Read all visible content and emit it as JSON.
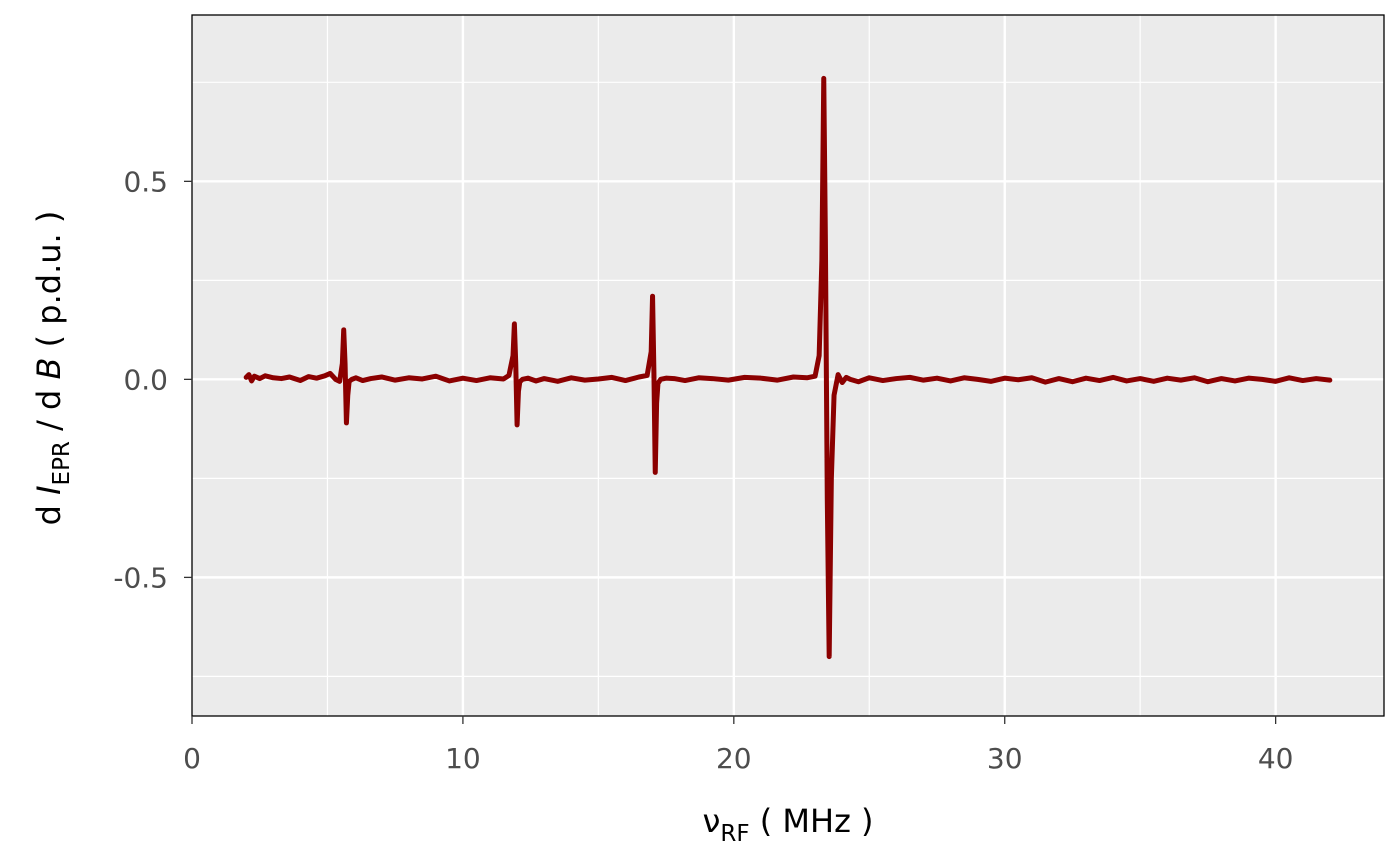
{
  "chart_data": {
    "type": "line",
    "title": "",
    "xlabel": {
      "main": "ν",
      "sub": "RF",
      "unit": " ( MHz )"
    },
    "ylabel": {
      "d1": "d ",
      "i": "I",
      "sub": "EPR",
      "mid": " / d ",
      "b": "B",
      "unit": "  ( p.d.u. )"
    },
    "xlim": [
      0,
      44
    ],
    "ylim": [
      -0.85,
      0.92
    ],
    "x_ticks": [
      {
        "value": 0,
        "label": "0"
      },
      {
        "value": 10,
        "label": "10"
      },
      {
        "value": 20,
        "label": "20"
      },
      {
        "value": 30,
        "label": "30"
      },
      {
        "value": 40,
        "label": "40"
      }
    ],
    "y_ticks": [
      {
        "value": -0.5,
        "label": "-0.5"
      },
      {
        "value": 0.0,
        "label": "0.0"
      },
      {
        "value": 0.5,
        "label": "0.5"
      }
    ],
    "x_minor_grid": [
      5,
      15,
      25,
      35
    ],
    "y_minor_grid": [
      -0.75,
      -0.25,
      0.25,
      0.75
    ],
    "grid": true,
    "legend": "none",
    "colors": {
      "panel": "#EBEBEB",
      "grid": "#FFFFFF",
      "line": "#8B0000",
      "frame": "#000000"
    },
    "series": [
      {
        "x": [
          2.0,
          2.1,
          2.2,
          2.3,
          2.5,
          2.7,
          3.0,
          3.3,
          3.6,
          4.0,
          4.3,
          4.6,
          4.9,
          5.1,
          5.3,
          5.45,
          5.55,
          5.6,
          5.65,
          5.7,
          5.75,
          5.8,
          5.9,
          6.05,
          6.3,
          6.6,
          7.0,
          7.5,
          8.0,
          8.5,
          9.0,
          9.5,
          10.0,
          10.5,
          11.0,
          11.5,
          11.7,
          11.85,
          11.9,
          11.95,
          12.0,
          12.05,
          12.1,
          12.2,
          12.4,
          12.7,
          13.0,
          13.5,
          14.0,
          14.5,
          15.0,
          15.5,
          16.0,
          16.5,
          16.8,
          16.95,
          17.0,
          17.05,
          17.1,
          17.15,
          17.2,
          17.3,
          17.5,
          17.8,
          18.2,
          18.7,
          19.2,
          19.8,
          20.4,
          21.0,
          21.6,
          22.2,
          22.7,
          23.0,
          23.15,
          23.25,
          23.32,
          23.38,
          23.45,
          23.52,
          23.6,
          23.7,
          23.85,
          24.0,
          24.15,
          24.3,
          24.6,
          25.0,
          25.5,
          26.0,
          26.5,
          27.0,
          27.5,
          28.0,
          28.5,
          29.0,
          29.5,
          30.0,
          30.5,
          31.0,
          31.5,
          32.0,
          32.5,
          33.0,
          33.5,
          34.0,
          34.5,
          35.0,
          35.5,
          36.0,
          36.5,
          37.0,
          37.5,
          38.0,
          38.5,
          39.0,
          39.5,
          40.0,
          40.5,
          41.0,
          41.5,
          42.0
        ],
        "y": [
          0.005,
          0.012,
          -0.004,
          0.008,
          0.002,
          0.009,
          0.004,
          0.002,
          0.006,
          -0.003,
          0.007,
          0.003,
          0.009,
          0.015,
          0.0,
          -0.005,
          0.04,
          0.125,
          0.04,
          -0.11,
          -0.04,
          -0.005,
          0.0,
          0.004,
          -0.003,
          0.002,
          0.006,
          -0.002,
          0.004,
          0.001,
          0.008,
          -0.004,
          0.003,
          -0.003,
          0.004,
          0.001,
          0.01,
          0.06,
          0.14,
          0.04,
          -0.115,
          -0.03,
          -0.006,
          0.0,
          0.003,
          -0.004,
          0.002,
          -0.005,
          0.004,
          -0.002,
          0.001,
          0.005,
          -0.003,
          0.006,
          0.01,
          0.07,
          0.21,
          0.02,
          -0.235,
          -0.06,
          -0.01,
          0.0,
          0.003,
          0.002,
          -0.003,
          0.004,
          0.002,
          -0.002,
          0.005,
          0.003,
          -0.002,
          0.006,
          0.004,
          0.008,
          0.06,
          0.3,
          0.76,
          0.35,
          -0.3,
          -0.7,
          -0.25,
          -0.04,
          0.012,
          -0.008,
          0.005,
          0.0,
          -0.006,
          0.004,
          -0.003,
          0.002,
          0.005,
          -0.002,
          0.003,
          -0.004,
          0.004,
          0.0,
          -0.005,
          0.003,
          -0.001,
          0.004,
          -0.007,
          0.002,
          -0.006,
          0.003,
          -0.003,
          0.005,
          -0.004,
          0.002,
          -0.005,
          0.003,
          -0.002,
          0.004,
          -0.006,
          0.002,
          -0.004,
          0.003,
          0.0,
          -0.005,
          0.004,
          -0.003,
          0.002,
          -0.002
        ]
      }
    ]
  }
}
